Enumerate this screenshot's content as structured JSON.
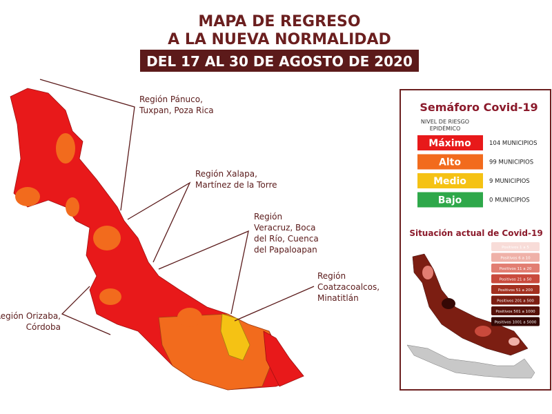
{
  "header": {
    "title_lines": [
      "MAPA DE REGRESO",
      "A LA NUEVA NORMALIDAD"
    ],
    "banner": "DEL 17 AL 30 DE AGOSTO DE 2020"
  },
  "regions": [
    {
      "lines": [
        "Región Pánuco,",
        "Tuxpan, Poza Rica"
      ]
    },
    {
      "lines": [
        "Región Xalapa,",
        "Martínez de la Torre"
      ]
    },
    {
      "lines": [
        "Región",
        "Veracruz, Boca",
        "del Río, Cuenca",
        "del Papaloapan"
      ]
    },
    {
      "lines": [
        "Región",
        "Coatzacoalcos,",
        "Minatitlán"
      ]
    },
    {
      "lines": [
        "Región Orizaba,",
        "Córdoba"
      ]
    }
  ],
  "legend": {
    "title": "Semáforo Covid-19",
    "subtitle_lines": [
      "NIVEL DE RIESGO",
      "EPIDÉMICO"
    ],
    "levels": [
      {
        "name": "Máximo",
        "count": "104 MUNICIPIOS",
        "color": "#e8191a"
      },
      {
        "name": "Alto",
        "count": "99 MUNICIPIOS",
        "color": "#f26b1d"
      },
      {
        "name": "Medio",
        "count": "9 MUNICIPIOS",
        "color": "#f5c214"
      },
      {
        "name": "Bajo",
        "count": "0 MUNICIPIOS",
        "color": "#2ea84a"
      }
    ]
  },
  "inset": {
    "title": "Situación actual de Covid-19",
    "items": [
      {
        "label": "Positivos 1 a 5",
        "color": "#f8dcd8"
      },
      {
        "label": "Positivos 6 a 10",
        "color": "#efb1a8"
      },
      {
        "label": "Positivos 11 a 20",
        "color": "#e27e72"
      },
      {
        "label": "Positivos 21 a 50",
        "color": "#c94a3c"
      },
      {
        "label": "Positivos 51 a 200",
        "color": "#a3301f"
      },
      {
        "label": "Positivos 201 a 500",
        "color": "#7c1e12"
      },
      {
        "label": "Positivos 501 a 1000",
        "color": "#561109"
      },
      {
        "label": "Positivos 1001 a 5000",
        "color": "#350805"
      }
    ]
  }
}
